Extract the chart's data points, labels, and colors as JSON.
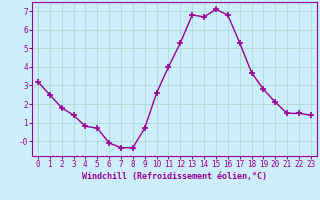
{
  "x": [
    0,
    1,
    2,
    3,
    4,
    5,
    6,
    7,
    8,
    9,
    10,
    11,
    12,
    13,
    14,
    15,
    16,
    17,
    18,
    19,
    20,
    21,
    22,
    23
  ],
  "y": [
    3.2,
    2.5,
    1.8,
    1.4,
    0.8,
    0.7,
    -0.1,
    -0.35,
    -0.35,
    0.7,
    2.6,
    4.0,
    5.3,
    6.8,
    6.7,
    7.1,
    6.8,
    5.3,
    3.7,
    2.8,
    2.1,
    1.5,
    1.5,
    1.4
  ],
  "line_color": "#990099",
  "marker": "+",
  "marker_size": 4,
  "bg_color": "#cceeff",
  "grid_color": "#aaddcc",
  "xlabel": "Windchill (Refroidissement éolien,°C)",
  "xlabel_color": "#990099",
  "tick_color": "#990099",
  "label_color": "#990099",
  "spine_color": "#990099",
  "ylim": [
    -0.8,
    7.5
  ],
  "xlim": [
    -0.5,
    23.5
  ],
  "yticks": [
    0,
    1,
    2,
    3,
    4,
    5,
    6,
    7
  ],
  "ytick_labels": [
    "-0",
    "1",
    "2",
    "3",
    "4",
    "5",
    "6",
    "7"
  ],
  "xticks": [
    0,
    1,
    2,
    3,
    4,
    5,
    6,
    7,
    8,
    9,
    10,
    11,
    12,
    13,
    14,
    15,
    16,
    17,
    18,
    19,
    20,
    21,
    22,
    23
  ],
  "tick_fontsize": 5.5,
  "xlabel_fontsize": 6.0
}
